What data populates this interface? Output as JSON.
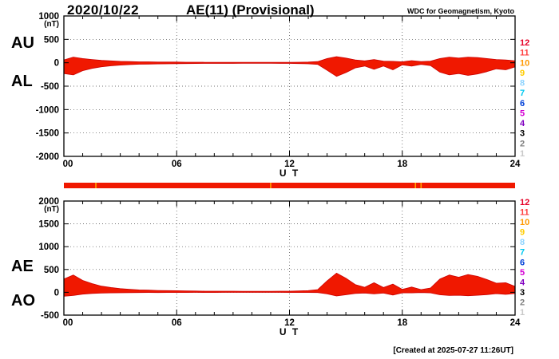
{
  "header": {
    "date": "2020/10/22",
    "title": "AE(11) (Provisional)",
    "source": "WDC for Geomagnetism, Kyoto"
  },
  "footer": {
    "created_note": "[Created at 2025-07-27 11:26UT]"
  },
  "colors": {
    "trace_fill": "#f01800",
    "trace_stroke": "#cc0000",
    "bar": "#f01800",
    "axis": "#000000",
    "grid": "#444444"
  },
  "station_scale": {
    "description": "number of contributing stations (12 = all)",
    "values": [
      "12",
      "11",
      "10",
      "9",
      "8",
      "7",
      "6",
      "5",
      "4",
      "3",
      "2",
      "1"
    ],
    "colors": [
      "#e60026",
      "#ff4040",
      "#ff9900",
      "#ffcc00",
      "#8fd4ff",
      "#00c8f0",
      "#0040d8",
      "#d400d4",
      "#8000c0",
      "#000000",
      "#808080",
      "#c8c8c8"
    ]
  },
  "station_bar": {
    "full_value": 12,
    "gap_hours": [
      1.7,
      11.0,
      18.7,
      19.0
    ],
    "gap_color": "#ffa200"
  },
  "chart_data": [
    {
      "type": "area",
      "name": "AU/AL",
      "left_labels": [
        "AU",
        "AL"
      ],
      "ylabel": "(nT)",
      "ylim": [
        -2000,
        1000
      ],
      "yticks": [
        1000,
        500,
        0,
        -500,
        -1000,
        -1500,
        -2000
      ],
      "ytick_labels": [
        "1000",
        "500",
        "0",
        "-500",
        "-1000",
        "-1500",
        "-2000"
      ],
      "xlim": [
        0,
        24
      ],
      "xticks": [
        0,
        6,
        12,
        18,
        24
      ],
      "xtick_labels": [
        "00",
        "06",
        "12",
        "18",
        "24"
      ],
      "xlabel": "U T",
      "grid": "dotted",
      "x": [
        0,
        0.5,
        1,
        1.5,
        2,
        2.5,
        3,
        3.5,
        4,
        4.5,
        5,
        5.5,
        6,
        6.5,
        7,
        7.5,
        8,
        8.5,
        9,
        9.5,
        10,
        10.5,
        11,
        11.5,
        12,
        12.5,
        13,
        13.5,
        14,
        14.5,
        15,
        15.5,
        16,
        16.5,
        17,
        17.5,
        18,
        18.5,
        19,
        19.5,
        20,
        20.5,
        21,
        21.5,
        22,
        22.5,
        23,
        23.5,
        24
      ],
      "series": [
        {
          "name": "AU",
          "values": [
            60,
            120,
            90,
            70,
            50,
            40,
            30,
            25,
            20,
            20,
            15,
            15,
            15,
            12,
            12,
            10,
            10,
            10,
            10,
            10,
            10,
            10,
            10,
            10,
            10,
            12,
            15,
            25,
            90,
            130,
            100,
            60,
            40,
            70,
            35,
            30,
            20,
            45,
            25,
            35,
            90,
            120,
            100,
            120,
            110,
            90,
            70,
            60,
            40
          ]
        },
        {
          "name": "AL",
          "values": [
            -230,
            -260,
            -170,
            -120,
            -85,
            -65,
            -50,
            -40,
            -32,
            -28,
            -25,
            -22,
            -20,
            -18,
            -16,
            -15,
            -15,
            -14,
            -14,
            -13,
            -13,
            -13,
            -13,
            -14,
            -15,
            -18,
            -22,
            -35,
            -160,
            -290,
            -210,
            -110,
            -70,
            -140,
            -70,
            -150,
            -45,
            -70,
            -35,
            -60,
            -200,
            -260,
            -230,
            -270,
            -240,
            -190,
            -130,
            -150,
            -90
          ]
        }
      ]
    },
    {
      "type": "area",
      "name": "AE/AO",
      "left_labels": [
        "AE",
        "AO"
      ],
      "ylabel": "(nT)",
      "ylim": [
        -500,
        2000
      ],
      "yticks": [
        2000,
        1500,
        1000,
        500,
        0,
        -500
      ],
      "ytick_labels": [
        "2000",
        "1500",
        "1000",
        "500",
        "0",
        "-500"
      ],
      "xlim": [
        0,
        24
      ],
      "xticks": [
        0,
        6,
        12,
        18,
        24
      ],
      "xtick_labels": [
        "00",
        "06",
        "12",
        "18",
        "24"
      ],
      "xlabel": "U T",
      "grid": "dotted",
      "x": [
        0,
        0.5,
        1,
        1.5,
        2,
        2.5,
        3,
        3.5,
        4,
        4.5,
        5,
        5.5,
        6,
        6.5,
        7,
        7.5,
        8,
        8.5,
        9,
        9.5,
        10,
        10.5,
        11,
        11.5,
        12,
        12.5,
        13,
        13.5,
        14,
        14.5,
        15,
        15.5,
        16,
        16.5,
        17,
        17.5,
        18,
        18.5,
        19,
        19.5,
        20,
        20.5,
        21,
        21.5,
        22,
        22.5,
        23,
        23.5,
        24
      ],
      "series": [
        {
          "name": "AE",
          "values": [
            290,
            380,
            260,
            190,
            135,
            105,
            80,
            65,
            52,
            48,
            40,
            37,
            35,
            30,
            28,
            25,
            25,
            24,
            24,
            23,
            23,
            23,
            23,
            24,
            25,
            30,
            37,
            60,
            250,
            420,
            310,
            170,
            110,
            210,
            105,
            180,
            65,
            115,
            60,
            95,
            290,
            380,
            330,
            390,
            350,
            280,
            200,
            210,
            130
          ]
        },
        {
          "name": "AO",
          "values": [
            -85,
            -70,
            -40,
            -25,
            -18,
            -13,
            -10,
            -8,
            -6,
            -4,
            -5,
            -4,
            -3,
            -3,
            -2,
            -3,
            -3,
            -2,
            -2,
            -2,
            -2,
            -2,
            -2,
            -2,
            -3,
            -3,
            -4,
            -5,
            -35,
            -80,
            -55,
            -25,
            -15,
            -35,
            -18,
            -60,
            -13,
            -13,
            -5,
            -13,
            -55,
            -70,
            -65,
            -75,
            -65,
            -50,
            -30,
            -45,
            -25
          ]
        }
      ]
    }
  ]
}
